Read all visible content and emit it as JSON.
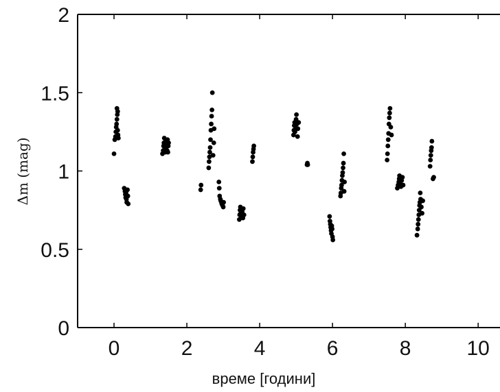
{
  "chart_data": {
    "type": "scatter",
    "title": "",
    "xlabel": "време [години]",
    "ylabel": "Δm  (mag)",
    "xlim": [
      -1,
      10.6
    ],
    "ylim": [
      0,
      2
    ],
    "x_ticks": [
      0,
      2,
      4,
      6,
      8,
      10
    ],
    "y_ticks": [
      0,
      0.5,
      1,
      1.5,
      2
    ],
    "x_tick_labels": [
      "0",
      "2",
      "4",
      "6",
      "8",
      "10"
    ],
    "y_tick_labels": [
      "0",
      "0.5",
      "1",
      "1.5",
      "2"
    ],
    "grid": false,
    "legend": "none",
    "colors": {
      "points": "#000000",
      "axes": "#000000",
      "background": "#ffffff"
    },
    "series": [
      {
        "points": [
          [
            0.0,
            1.11
          ],
          [
            0.02,
            1.2
          ],
          [
            0.04,
            1.22
          ],
          [
            0.05,
            1.25
          ],
          [
            0.06,
            1.28
          ],
          [
            0.07,
            1.3
          ],
          [
            0.08,
            1.33
          ],
          [
            0.09,
            1.36
          ],
          [
            0.1,
            1.38
          ],
          [
            0.08,
            1.4
          ],
          [
            0.1,
            1.26
          ],
          [
            0.11,
            1.23
          ],
          [
            0.12,
            1.21
          ],
          [
            0.28,
            0.89
          ],
          [
            0.3,
            0.87
          ],
          [
            0.31,
            0.85
          ],
          [
            0.32,
            0.83
          ],
          [
            0.33,
            0.86
          ],
          [
            0.34,
            0.82
          ],
          [
            0.35,
            0.8
          ],
          [
            0.37,
            0.88
          ],
          [
            0.38,
            0.84
          ],
          [
            0.39,
            0.79
          ],
          [
            1.33,
            1.11
          ],
          [
            1.35,
            1.13
          ],
          [
            1.36,
            1.16
          ],
          [
            1.37,
            1.18
          ],
          [
            1.38,
            1.21
          ],
          [
            1.39,
            1.14
          ],
          [
            1.41,
            1.12
          ],
          [
            1.42,
            1.19
          ],
          [
            1.43,
            1.15
          ],
          [
            1.45,
            1.17
          ],
          [
            1.46,
            1.13
          ],
          [
            1.47,
            1.2
          ],
          [
            1.48,
            1.12
          ],
          [
            1.49,
            1.16
          ],
          [
            1.5,
            1.18
          ],
          [
            2.38,
            0.88
          ],
          [
            2.39,
            0.91
          ],
          [
            2.6,
            1.02
          ],
          [
            2.61,
            1.06
          ],
          [
            2.62,
            1.09
          ],
          [
            2.63,
            1.12
          ],
          [
            2.64,
            1.15
          ],
          [
            2.65,
            1.2
          ],
          [
            2.66,
            1.26
          ],
          [
            2.67,
            1.3
          ],
          [
            2.68,
            1.35
          ],
          [
            2.69,
            1.39
          ],
          [
            2.7,
            1.5
          ],
          [
            2.72,
            1.1
          ],
          [
            2.74,
            1.18
          ],
          [
            2.75,
            1.27
          ],
          [
            2.88,
            0.93
          ],
          [
            2.89,
            0.89
          ],
          [
            2.9,
            0.84
          ],
          [
            2.92,
            0.82
          ],
          [
            2.93,
            0.81
          ],
          [
            2.95,
            0.8
          ],
          [
            2.96,
            0.79
          ],
          [
            2.98,
            0.78
          ],
          [
            3.0,
            0.77
          ],
          [
            3.01,
            0.8
          ],
          [
            3.44,
            0.69
          ],
          [
            3.45,
            0.72
          ],
          [
            3.46,
            0.75
          ],
          [
            3.47,
            0.77
          ],
          [
            3.48,
            0.73
          ],
          [
            3.5,
            0.71
          ],
          [
            3.52,
            0.74
          ],
          [
            3.54,
            0.7
          ],
          [
            3.55,
            0.76
          ],
          [
            3.57,
            0.72
          ],
          [
            3.8,
            1.06
          ],
          [
            3.81,
            1.09
          ],
          [
            3.82,
            1.12
          ],
          [
            3.83,
            1.14
          ],
          [
            3.84,
            1.16
          ],
          [
            4.93,
            1.23
          ],
          [
            4.94,
            1.26
          ],
          [
            4.95,
            1.29
          ],
          [
            4.96,
            1.31
          ],
          [
            4.97,
            1.25
          ],
          [
            4.99,
            1.28
          ],
          [
            5.0,
            1.33
          ],
          [
            5.01,
            1.36
          ],
          [
            5.02,
            1.3
          ],
          [
            5.04,
            1.22
          ],
          [
            5.05,
            1.27
          ],
          [
            5.07,
            1.31
          ],
          [
            5.3,
            1.04
          ],
          [
            5.31,
            1.05
          ],
          [
            5.32,
            1.04
          ],
          [
            5.92,
            0.71
          ],
          [
            5.93,
            0.68
          ],
          [
            5.94,
            0.66
          ],
          [
            5.95,
            0.64
          ],
          [
            5.96,
            0.62
          ],
          [
            5.97,
            0.6
          ],
          [
            5.98,
            0.65
          ],
          [
            5.99,
            0.63
          ],
          [
            6.0,
            0.58
          ],
          [
            6.01,
            0.56
          ],
          [
            6.22,
            0.84
          ],
          [
            6.23,
            0.86
          ],
          [
            6.24,
            0.89
          ],
          [
            6.25,
            0.91
          ],
          [
            6.26,
            0.94
          ],
          [
            6.27,
            0.97
          ],
          [
            6.28,
            0.99
          ],
          [
            6.29,
            1.02
          ],
          [
            6.3,
            1.05
          ],
          [
            6.31,
            1.11
          ],
          [
            6.32,
            0.87
          ],
          [
            6.33,
            0.93
          ],
          [
            7.5,
            1.07
          ],
          [
            7.51,
            1.11
          ],
          [
            7.52,
            1.16
          ],
          [
            7.53,
            1.2
          ],
          [
            7.54,
            1.24
          ],
          [
            7.55,
            1.3
          ],
          [
            7.56,
            1.34
          ],
          [
            7.57,
            1.37
          ],
          [
            7.58,
            1.4
          ],
          [
            7.6,
            1.28
          ],
          [
            7.62,
            1.23
          ],
          [
            7.78,
            0.89
          ],
          [
            7.8,
            0.91
          ],
          [
            7.82,
            0.93
          ],
          [
            7.83,
            0.95
          ],
          [
            7.84,
            0.97
          ],
          [
            7.86,
            0.92
          ],
          [
            7.88,
            0.9
          ],
          [
            7.9,
            0.94
          ],
          [
            7.92,
            0.96
          ],
          [
            7.94,
            0.91
          ],
          [
            8.32,
            0.59
          ],
          [
            8.34,
            0.63
          ],
          [
            8.35,
            0.66
          ],
          [
            8.36,
            0.69
          ],
          [
            8.37,
            0.72
          ],
          [
            8.38,
            0.75
          ],
          [
            8.39,
            0.78
          ],
          [
            8.4,
            0.8
          ],
          [
            8.41,
            0.86
          ],
          [
            8.42,
            0.82
          ],
          [
            8.44,
            0.77
          ],
          [
            8.46,
            0.73
          ],
          [
            8.48,
            0.81
          ],
          [
            8.68,
            1.03
          ],
          [
            8.69,
            1.07
          ],
          [
            8.7,
            1.1
          ],
          [
            8.71,
            1.13
          ],
          [
            8.72,
            1.15
          ],
          [
            8.73,
            1.19
          ],
          [
            8.76,
            0.95
          ],
          [
            8.78,
            0.96
          ]
        ]
      }
    ]
  }
}
